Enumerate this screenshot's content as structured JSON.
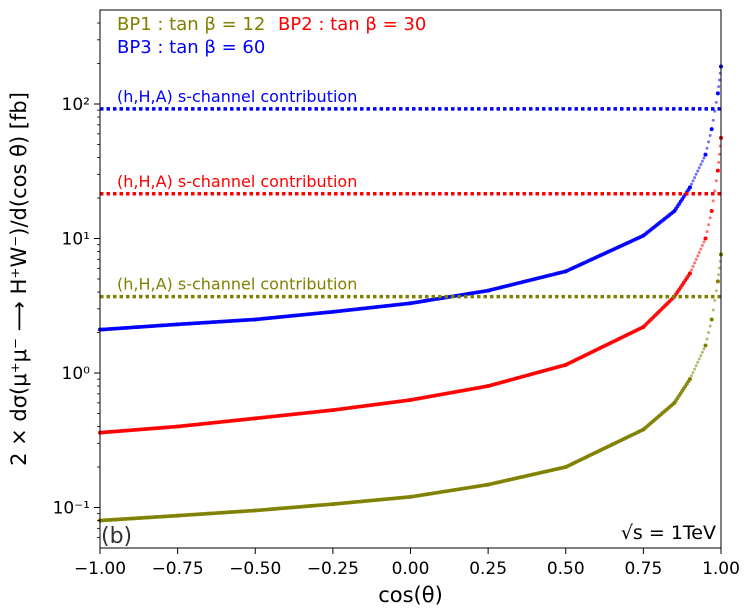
{
  "chart_data": {
    "type": "scatter",
    "xlabel": "cos(θ)",
    "ylabel": "2 × dσ(μ⁺μ⁻ ⟶ H⁺W⁻)/d(cos θ) [fb]",
    "xlim": [
      -1.0,
      1.0
    ],
    "ylim": [
      0.05,
      500
    ],
    "yscale": "log",
    "grid": false,
    "legend_placement": "top-left",
    "x_ticks": [
      -1.0,
      -0.75,
      -0.5,
      -0.25,
      0.0,
      0.25,
      0.5,
      0.75,
      1.0
    ],
    "x_tick_labels": [
      "−1.00",
      "−0.75",
      "−0.50",
      "−0.25",
      "0.00",
      "0.25",
      "0.50",
      "0.75",
      "1.00"
    ],
    "y_ticks": [
      0.1,
      1,
      10,
      100
    ],
    "y_tick_labels": [
      "10⁻¹",
      "10⁰",
      "10¹",
      "10²"
    ],
    "panel_label": "(b)",
    "energy_label": "√s = 1TeV",
    "series": [
      {
        "name": "BP1 : tan β = 12",
        "color": "#808000",
        "x": [
          -1.0,
          -0.75,
          -0.5,
          -0.25,
          0.0,
          0.25,
          0.5,
          0.75,
          0.85,
          0.9,
          0.95,
          0.97,
          0.99,
          1.0
        ],
        "y": [
          0.08,
          0.087,
          0.095,
          0.106,
          0.12,
          0.148,
          0.2,
          0.38,
          0.6,
          0.9,
          1.6,
          2.5,
          4.8,
          7.6
        ]
      },
      {
        "name": "BP2 : tan β = 30",
        "color": "#ff0000",
        "x": [
          -1.0,
          -0.75,
          -0.5,
          -0.25,
          0.0,
          0.25,
          0.5,
          0.75,
          0.85,
          0.9,
          0.95,
          0.97,
          0.99,
          1.0
        ],
        "y": [
          0.36,
          0.4,
          0.46,
          0.53,
          0.63,
          0.8,
          1.15,
          2.2,
          3.7,
          5.5,
          10,
          16,
          32,
          56
        ]
      },
      {
        "name": "BP3 : tan β = 60",
        "color": "#0000ff",
        "x": [
          -1.0,
          -0.75,
          -0.5,
          -0.25,
          0.0,
          0.25,
          0.5,
          0.75,
          0.85,
          0.9,
          0.95,
          0.97,
          0.99,
          1.0
        ],
        "y": [
          2.1,
          2.3,
          2.5,
          2.85,
          3.3,
          4.1,
          5.7,
          10.5,
          16,
          24,
          42,
          65,
          120,
          190
        ]
      }
    ],
    "horizontal_lines": [
      {
        "label": "(h,H,A) s-channel contribution",
        "color": "#0000ff",
        "y": 92
      },
      {
        "label": "(h,H,A) s-channel contribution",
        "color": "#ff0000",
        "y": 21.5
      },
      {
        "label": "(h,H,A) s-channel contribution",
        "color": "#808000",
        "y": 3.7
      }
    ]
  }
}
